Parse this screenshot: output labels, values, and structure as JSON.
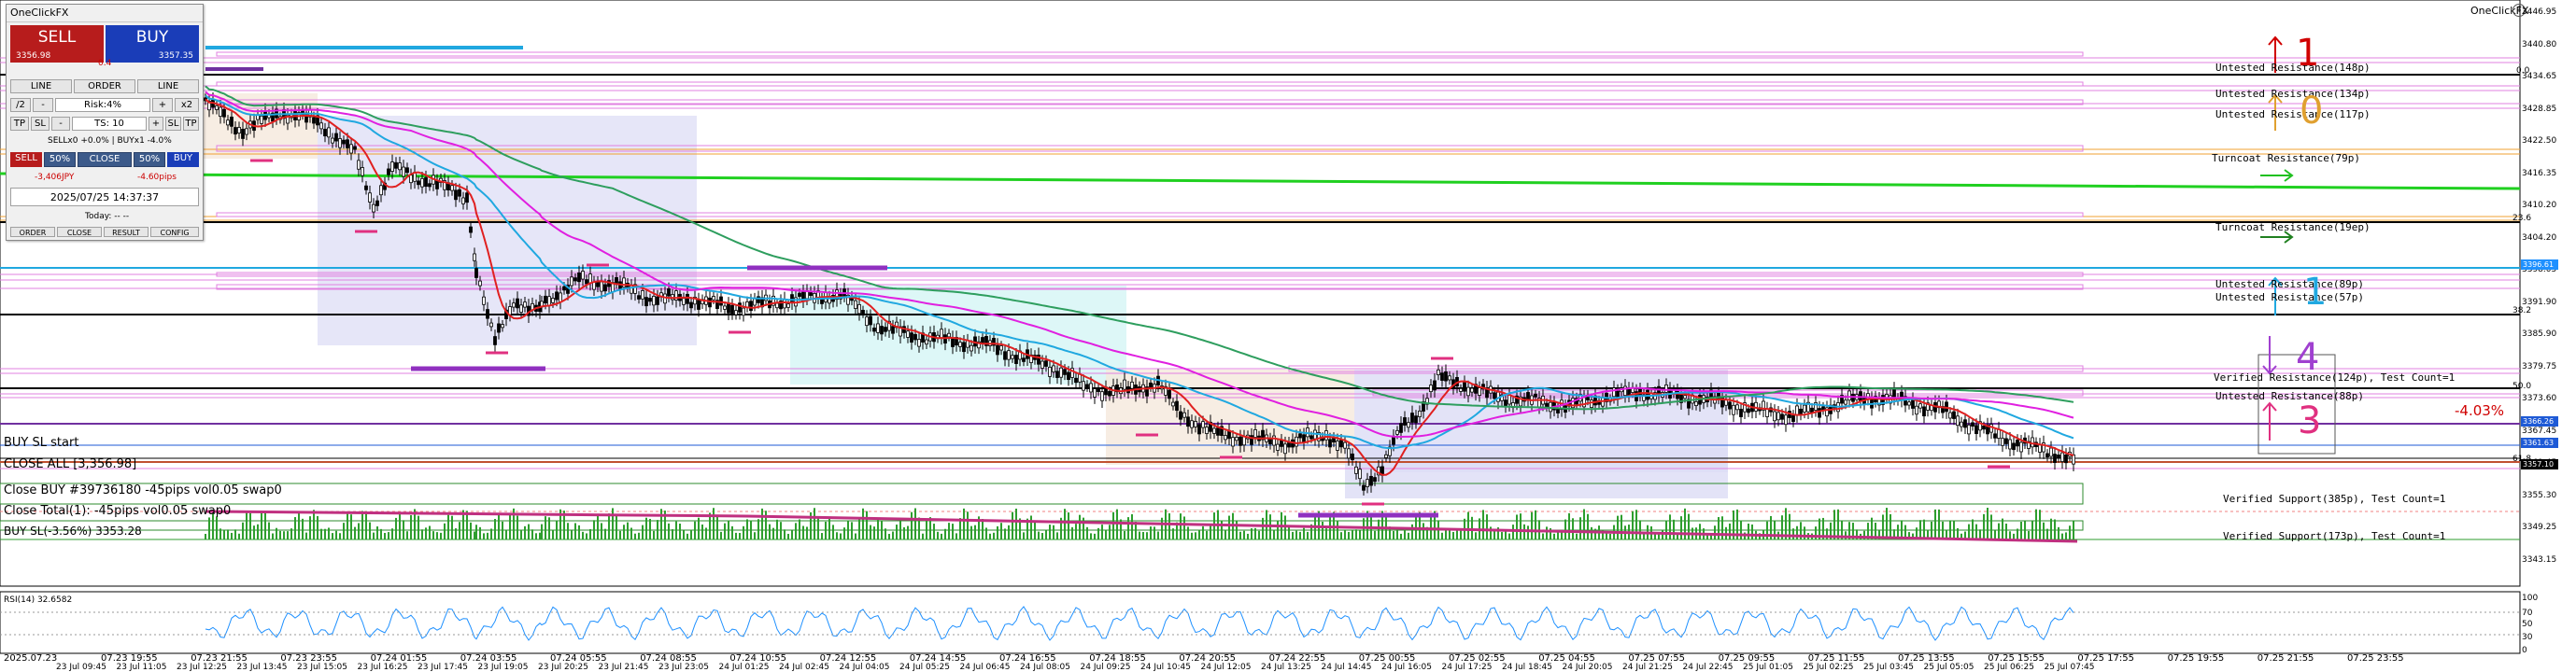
{
  "window": {
    "corner_title": "OneClickFX"
  },
  "panel": {
    "title": "OneClickFX",
    "sell_label": "SELL",
    "buy_label": "BUY",
    "sell_price": "3356.98",
    "spread": "0.4",
    "buy_price": "3357.35",
    "line_left": "LINE",
    "order_label": "ORDER",
    "line_right": "LINE",
    "half_label": "/2",
    "minus_label": "-",
    "risk_label": "Risk:4%",
    "plus_label": "+",
    "double_label": "x2",
    "tp_label": "TP",
    "sl_label": "SL",
    "minus2_label": "-",
    "ts_label": "TS: 10",
    "plus2_label": "+",
    "sl2_label": "SL",
    "tp2_label": "TP",
    "lots_summary": "SELLx0 +0.0% | BUYx1 -4.0%",
    "sell_btn": "SELL",
    "sell_pct": "50%",
    "close_btn": "CLOSE",
    "buy_pct": "50%",
    "buy_btn": "BUY",
    "pl_jpy": "-3,406JPY",
    "pl_pips": "-4.60pips",
    "datetime": "2025/07/25  14:37:37",
    "today": "Today: -- --",
    "tab_order": "ORDER",
    "tab_close": "CLOSE",
    "tab_result": "RESULT",
    "tab_config": "CONFIG"
  },
  "zones": [
    {
      "label": "Untested Resistance(148p)"
    },
    {
      "label": "Untested Resistance(134p)"
    },
    {
      "label": "Untested Resistance(117p)"
    },
    {
      "label": "Turncoat Resistance(79p)"
    },
    {
      "label": "Turncoat Resistance(19ep)"
    },
    {
      "label": "Untested Resistance(89p)"
    },
    {
      "label": "Untested Resistance(57p)"
    },
    {
      "label": "Verified Resistance(124p), Test Count=1"
    },
    {
      "label": "Untested Resistance(88p)"
    },
    {
      "label": "Verified Support(385p), Test Count=1"
    },
    {
      "label": "Verified Support(173p), Test Count=1"
    }
  ],
  "fib_labels": [
    "0.0",
    "23.6",
    "38.2",
    "50.0",
    "61.8"
  ],
  "percent_label": "-4.03%",
  "big_numbers": {
    "n1": "1",
    "n0": "0",
    "n1b": "1",
    "n4": "4",
    "n3": "3"
  },
  "trade_lines": {
    "buy_sl_start": "BUY SL start",
    "close_all": "CLOSE ALL [3,356.98]",
    "close_buy": "Close BUY #39736180 -45pips vol0.05 swap0",
    "close_total": "Close Total(1): -45pips vol0.05 swap0",
    "buy_sl": "BUY SL(-3.56%) 3353.28"
  },
  "price_axis": [
    "3446.95",
    "3440.80",
    "3434.65",
    "3428.85",
    "3422.50",
    "3416.35",
    "3410.20",
    "3404.20",
    "3398.05",
    "3391.90",
    "3385.90",
    "3379.75",
    "3373.60",
    "3367.45",
    "3361.45",
    "3355.30",
    "3349.25",
    "3343.15"
  ],
  "price_tags": [
    {
      "value": "3396.61",
      "color": "#1e90ff"
    },
    {
      "value": "3366.26",
      "color": "#1e5ad6"
    },
    {
      "value": "3361.63",
      "color": "#1e5ad6"
    },
    {
      "value": "3357.10",
      "color": "#000000"
    }
  ],
  "rsi": {
    "label": "RSI(14) 32.6582",
    "levels": [
      "100",
      "70",
      "50",
      "30",
      "0"
    ]
  },
  "x_axis_top": [
    "2025.07.23",
    "07.23 19:55",
    "07.23 21:55",
    "07.23 23:55",
    "07.24 01:55",
    "07.24 03:55",
    "07.24 05:55",
    "07.24 08:55",
    "07.24 10:55",
    "07.24 12:55",
    "07.24 14:55",
    "07.24 16:55",
    "07.24 18:55",
    "07.24 20:55",
    "07.24 22:55",
    "07.25 00:55",
    "07.25 02:55",
    "07.25 04:55",
    "07.25 07:55",
    "07.25 09:55",
    "07.25 11:55",
    "07.25 13:55",
    "07.25 15:55",
    "07.25 17:55",
    "07.25 19:55",
    "07.25 21:55",
    "07.25 23:55"
  ],
  "x_axis_bottom": [
    "23 Jul 09:45",
    "23 Jul 11:05",
    "23 Jul 12:25",
    "23 Jul 13:45",
    "23 Jul 15:05",
    "23 Jul 16:25",
    "23 Jul 17:45",
    "23 Jul 19:05",
    "23 Jul 20:25",
    "23 Jul 21:45",
    "23 Jul 23:05",
    "24 Jul 01:25",
    "24 Jul 02:45",
    "24 Jul 04:05",
    "24 Jul 05:25",
    "24 Jul 06:45",
    "24 Jul 08:05",
    "24 Jul 09:25",
    "24 Jul 10:45",
    "24 Jul 12:05",
    "24 Jul 13:25",
    "24 Jul 14:45",
    "24 Jul 16:05",
    "24 Jul 17:25",
    "24 Jul 18:45",
    "24 Jul 20:05",
    "24 Jul 21:25",
    "24 Jul 22:45",
    "25 Jul 01:05",
    "25 Jul 02:25",
    "25 Jul 03:45",
    "25 Jul 05:05",
    "25 Jul 06:25",
    "25 Jul 07:45"
  ]
}
